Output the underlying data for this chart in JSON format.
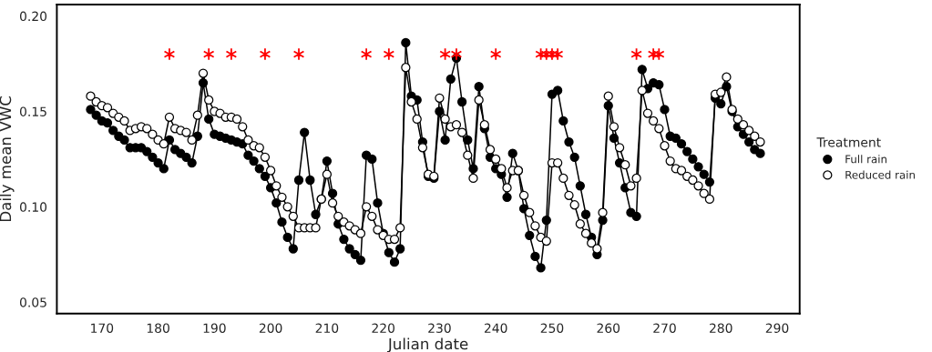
{
  "chart_data": {
    "type": "line",
    "xlabel": "Julian date",
    "ylabel": "Daily mean VWC",
    "legend_title": "Treatment",
    "legend": "right",
    "grid": false,
    "marker": "circle",
    "x": [
      168,
      169,
      170,
      171,
      172,
      173,
      174,
      175,
      176,
      177,
      178,
      179,
      180,
      181,
      182,
      183,
      184,
      185,
      186,
      187,
      188,
      189,
      190,
      191,
      192,
      193,
      194,
      195,
      196,
      197,
      198,
      199,
      200,
      201,
      202,
      203,
      204,
      205,
      206,
      207,
      208,
      209,
      210,
      211,
      212,
      213,
      214,
      215,
      216,
      217,
      218,
      219,
      220,
      221,
      222,
      223,
      224,
      225,
      226,
      227,
      228,
      229,
      230,
      231,
      232,
      233,
      234,
      235,
      236,
      237,
      238,
      239,
      240,
      241,
      242,
      243,
      244,
      245,
      246,
      247,
      248,
      249,
      250,
      251,
      252,
      253,
      254,
      255,
      256,
      257,
      258,
      259,
      260,
      261,
      262,
      263,
      264,
      265,
      266,
      267,
      268,
      269,
      270,
      271,
      272,
      273,
      274,
      275,
      276,
      277,
      278,
      279,
      280,
      281,
      282,
      283,
      284,
      285,
      286,
      287
    ],
    "xlim": [
      162,
      294
    ],
    "xticks": [
      170,
      180,
      190,
      200,
      210,
      220,
      230,
      240,
      250,
      260,
      270,
      280,
      290
    ],
    "ylim": [
      0.044,
      0.206
    ],
    "yticks": [
      {
        "value": 0.05,
        "label": "0.05"
      },
      {
        "value": 0.1,
        "label": "0.10"
      },
      {
        "value": 0.15,
        "label": "0.15"
      },
      {
        "value": 0.2,
        "label": "0.20"
      }
    ],
    "series": [
      {
        "name": "Full rain",
        "color": "#000000",
        "values": [
          0.151,
          0.148,
          0.145,
          0.144,
          0.14,
          0.137,
          0.135,
          0.131,
          0.131,
          0.131,
          0.129,
          0.126,
          0.123,
          0.12,
          0.135,
          0.13,
          0.128,
          0.126,
          0.123,
          0.137,
          0.165,
          0.146,
          0.138,
          0.137,
          0.136,
          0.135,
          0.134,
          0.133,
          0.127,
          0.124,
          0.12,
          0.116,
          0.11,
          0.102,
          0.092,
          0.084,
          0.078,
          0.114,
          0.139,
          0.114,
          0.096,
          0.104,
          0.124,
          0.107,
          0.091,
          0.083,
          0.078,
          0.075,
          0.072,
          0.127,
          0.125,
          0.102,
          0.086,
          0.076,
          0.071,
          0.078,
          0.186,
          0.158,
          0.156,
          0.134,
          0.116,
          0.115,
          0.15,
          0.135,
          0.167,
          0.178,
          0.155,
          0.135,
          0.12,
          0.163,
          0.141,
          0.126,
          0.12,
          0.117,
          0.105,
          0.128,
          0.119,
          0.099,
          0.085,
          0.074,
          0.068,
          0.093,
          0.159,
          0.161,
          0.145,
          0.134,
          0.126,
          0.111,
          0.096,
          0.084,
          0.075,
          0.093,
          0.153,
          0.136,
          0.123,
          0.11,
          0.097,
          0.095,
          0.172,
          0.162,
          0.165,
          0.164,
          0.151,
          0.137,
          0.136,
          0.133,
          0.129,
          0.125,
          0.121,
          0.117,
          0.113,
          0.157,
          0.154,
          0.163,
          0.15,
          0.142,
          0.138,
          0.134,
          0.13,
          0.128
        ]
      },
      {
        "name": "Reduced rain",
        "color": "#ffffff",
        "values": [
          0.158,
          0.155,
          0.153,
          0.152,
          0.149,
          0.147,
          0.145,
          0.14,
          0.141,
          0.142,
          0.141,
          0.138,
          0.135,
          0.133,
          0.147,
          0.141,
          0.14,
          0.139,
          0.135,
          0.148,
          0.17,
          0.156,
          0.15,
          0.149,
          0.147,
          0.147,
          0.146,
          0.142,
          0.135,
          0.132,
          0.131,
          0.126,
          0.119,
          0.111,
          0.105,
          0.1,
          0.095,
          0.089,
          0.089,
          0.089,
          0.089,
          0.104,
          0.117,
          0.102,
          0.095,
          0.092,
          0.09,
          0.088,
          0.086,
          0.1,
          0.095,
          0.088,
          0.085,
          0.083,
          0.083,
          0.089,
          0.173,
          0.155,
          0.146,
          0.131,
          0.117,
          0.116,
          0.157,
          0.146,
          0.142,
          0.143,
          0.139,
          0.127,
          0.115,
          0.156,
          0.143,
          0.13,
          0.125,
          0.12,
          0.11,
          0.119,
          0.119,
          0.106,
          0.097,
          0.09,
          0.084,
          0.082,
          0.123,
          0.123,
          0.115,
          0.106,
          0.101,
          0.091,
          0.086,
          0.081,
          0.078,
          0.097,
          0.158,
          0.142,
          0.131,
          0.122,
          0.111,
          0.115,
          0.161,
          0.149,
          0.145,
          0.141,
          0.132,
          0.124,
          0.12,
          0.119,
          0.116,
          0.114,
          0.111,
          0.107,
          0.104,
          0.159,
          0.16,
          0.168,
          0.151,
          0.146,
          0.143,
          0.14,
          0.137,
          0.134
        ]
      },
      {
        "type": "scatter",
        "color": "#ff0000",
        "marker": "cross",
        "x": [
          182,
          189,
          193,
          199,
          205,
          217,
          221,
          231,
          233,
          240,
          248,
          249,
          250,
          251,
          265,
          268,
          269
        ],
        "values": [
          0.18,
          0.18,
          0.18,
          0.18,
          0.18,
          0.18,
          0.18,
          0.18,
          0.18,
          0.18,
          0.18,
          0.18,
          0.18,
          0.18,
          0.18,
          0.18,
          0.18
        ]
      }
    ]
  }
}
